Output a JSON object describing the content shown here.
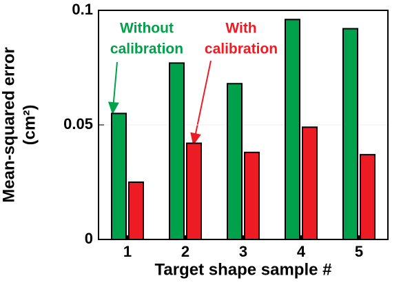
{
  "chart_data": {
    "type": "bar",
    "categories": [
      "1",
      "2",
      "3",
      "4",
      "5"
    ],
    "series": [
      {
        "color": "#00a14b",
        "values": [
          0.055,
          0.077,
          0.068,
          0.096,
          0.092
        ]
      },
      {
        "color": "#ed1c24",
        "values": [
          0.025,
          0.042,
          0.038,
          0.049,
          0.037
        ]
      }
    ],
    "ylim": [
      0,
      0.1
    ],
    "yticks": [
      0,
      0.05,
      0.1
    ],
    "xlabel": "Target shape sample #",
    "ylabel": [
      "Mean-squared error",
      "(cm²)"
    ],
    "annotations": [
      {
        "lines": [
          "Without",
          "calibration"
        ],
        "color": "#00a14b"
      },
      {
        "lines": [
          "With",
          "calibration"
        ],
        "color": "#ed1c24"
      }
    ]
  }
}
